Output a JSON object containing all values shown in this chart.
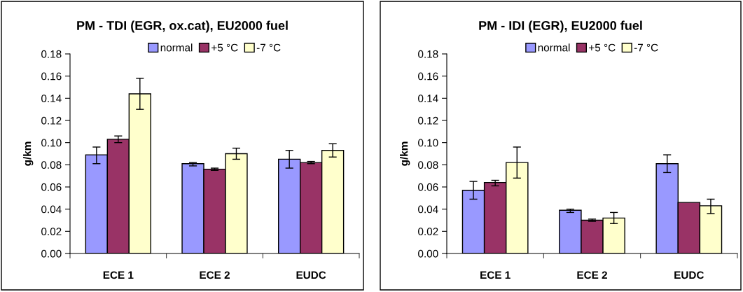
{
  "chart_data": [
    {
      "type": "bar",
      "title": "PM - TDI (EGR, ox.cat), EU2000 fuel",
      "ylabel": "g/km",
      "categories": [
        "ECE 1",
        "ECE 2",
        "EUDC"
      ],
      "ylim": [
        0,
        0.18
      ],
      "yticks": [
        {
          "value": 0,
          "label": "0.00"
        },
        {
          "value": 0.02,
          "label": "0.02"
        },
        {
          "value": 0.04,
          "label": "0.04"
        },
        {
          "value": 0.06,
          "label": "0.06"
        },
        {
          "value": 0.08,
          "label": "0.08"
        },
        {
          "value": 0.1,
          "label": "0.10"
        },
        {
          "value": 0.12,
          "label": "0.12"
        },
        {
          "value": 0.14,
          "label": "0.14"
        },
        {
          "value": 0.16,
          "label": "0.16"
        },
        {
          "value": 0.18,
          "label": "0.18"
        }
      ],
      "grid": false,
      "legend": "top",
      "series": [
        {
          "name": "normal",
          "color": "#9999ff",
          "values": [
            0.089,
            0.081,
            0.085
          ],
          "errors": [
            [
              0.081,
              0.096
            ],
            [
              0.079,
              0.082
            ],
            [
              0.077,
              0.093
            ]
          ]
        },
        {
          "name": "+5 °C",
          "color": "#993366",
          "values": [
            0.103,
            0.076,
            0.082
          ],
          "errors": [
            [
              0.1,
              0.106
            ],
            [
              0.075,
              0.077
            ],
            [
              0.081,
              0.083
            ]
          ]
        },
        {
          "name": "-7 °C",
          "color": "#ffffcc",
          "values": [
            0.144,
            0.09,
            0.093
          ],
          "errors": [
            [
              0.13,
              0.158
            ],
            [
              0.085,
              0.095
            ],
            [
              0.087,
              0.099
            ]
          ]
        }
      ]
    },
    {
      "type": "bar",
      "title": "PM - IDI (EGR), EU2000 fuel",
      "ylabel": "g/km",
      "categories": [
        "ECE 1",
        "ECE 2",
        "EUDC"
      ],
      "ylim": [
        0,
        0.18
      ],
      "yticks": [
        {
          "value": 0,
          "label": "0.00"
        },
        {
          "value": 0.02,
          "label": "0.02"
        },
        {
          "value": 0.04,
          "label": "0.04"
        },
        {
          "value": 0.06,
          "label": "0.06"
        },
        {
          "value": 0.08,
          "label": "0.08"
        },
        {
          "value": 0.1,
          "label": "0.10"
        },
        {
          "value": 0.12,
          "label": "0.12"
        },
        {
          "value": 0.14,
          "label": "0.14"
        },
        {
          "value": 0.16,
          "label": "0.16"
        },
        {
          "value": 0.18,
          "label": "0.18"
        }
      ],
      "grid": false,
      "legend": "top",
      "series": [
        {
          "name": "normal",
          "color": "#9999ff",
          "values": [
            0.057,
            0.039,
            0.081
          ],
          "errors": [
            [
              0.049,
              0.065
            ],
            [
              0.037,
              0.04
            ],
            [
              0.073,
              0.089
            ]
          ]
        },
        {
          "name": "+5 °C",
          "color": "#993366",
          "values": [
            0.064,
            0.03,
            0.046
          ],
          "errors": [
            [
              0.061,
              0.066
            ],
            [
              0.029,
              0.031
            ],
            null
          ]
        },
        {
          "name": "-7 °C",
          "color": "#ffffcc",
          "values": [
            0.082,
            0.032,
            0.043
          ],
          "errors": [
            [
              0.068,
              0.096
            ],
            [
              0.027,
              0.037
            ],
            [
              0.036,
              0.049
            ]
          ]
        }
      ]
    }
  ]
}
